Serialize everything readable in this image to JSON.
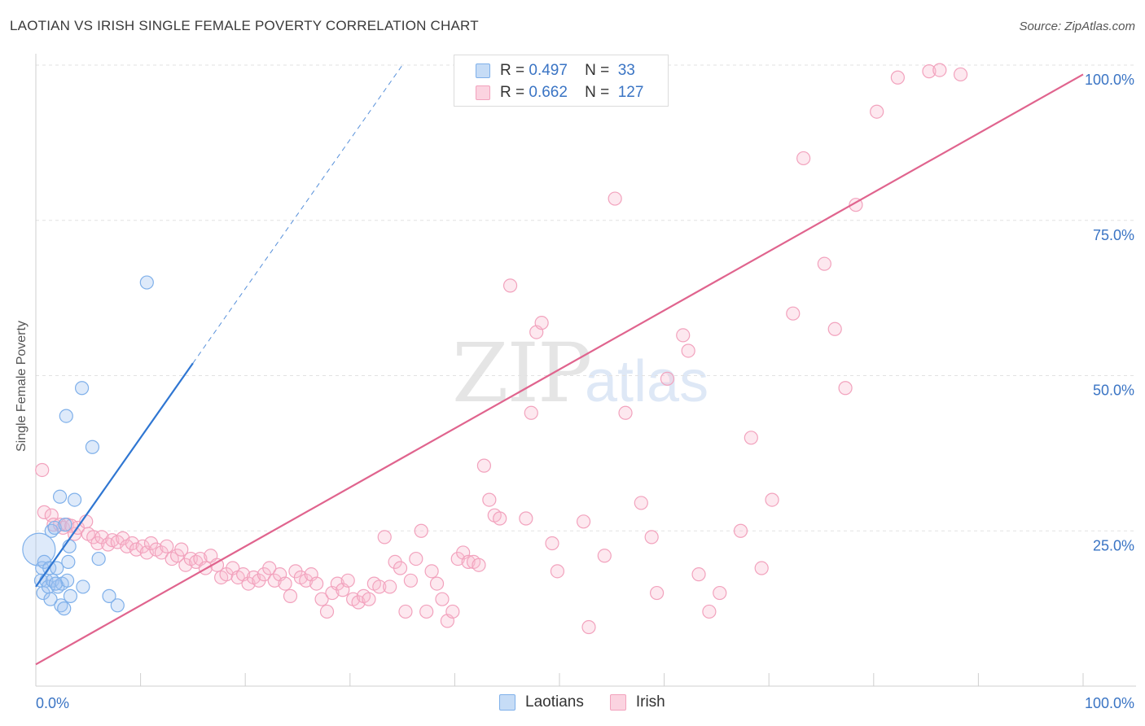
{
  "header": {
    "title": "LAOTIAN VS IRISH SINGLE FEMALE POVERTY CORRELATION CHART",
    "source": "Source: ZipAtlas.com"
  },
  "legend": {
    "laotians": {
      "r_label": "R =",
      "r_value": "0.497",
      "n_label": "N =",
      "n_value": "33"
    },
    "irish": {
      "r_label": "R =",
      "r_value": "0.662",
      "n_label": "N =",
      "n_value": "127"
    }
  },
  "bottom_legend": {
    "laotians": "Laotians",
    "irish": "Irish"
  },
  "watermark": {
    "zip": "ZIP",
    "atlas": "atlas"
  },
  "colors": {
    "laotians": "#7fb0ea",
    "laotians_line": "#2f76d2",
    "irish": "#f2a2bd",
    "irish_line": "#e0648e",
    "tick_label": "#3a74c4"
  },
  "chart_data": {
    "type": "scatter",
    "title": "LAOTIAN VS IRISH SINGLE FEMALE POVERTY CORRELATION CHART",
    "xlabel": "",
    "ylabel": "Single Female Poverty",
    "xlim": [
      0,
      100
    ],
    "ylim": [
      0,
      100
    ],
    "x_tick_labels": [
      "0.0%",
      "100.0%"
    ],
    "y_tick_labels": [
      "25.0%",
      "50.0%",
      "75.0%",
      "100.0%"
    ],
    "y_ticks": [
      25,
      50,
      75,
      100
    ],
    "grid": true,
    "legend_position": "top-center",
    "series": [
      {
        "name": "Laotians",
        "points": [
          [
            0.3,
            22.0
          ],
          [
            0.5,
            17.0
          ],
          [
            0.6,
            19.0
          ],
          [
            0.7,
            15.0
          ],
          [
            0.8,
            20.0
          ],
          [
            1.0,
            17.0
          ],
          [
            1.2,
            16.0
          ],
          [
            1.3,
            19.0
          ],
          [
            1.4,
            14.0
          ],
          [
            1.5,
            25.0
          ],
          [
            1.6,
            17.0
          ],
          [
            1.8,
            25.5
          ],
          [
            2.0,
            19.0
          ],
          [
            2.1,
            16.0
          ],
          [
            2.3,
            30.5
          ],
          [
            2.4,
            13.0
          ],
          [
            2.5,
            16.5
          ],
          [
            2.7,
            12.5
          ],
          [
            2.8,
            26.0
          ],
          [
            2.9,
            43.5
          ],
          [
            3.0,
            17.0
          ],
          [
            3.1,
            20.0
          ],
          [
            3.2,
            22.5
          ],
          [
            3.3,
            14.5
          ],
          [
            3.7,
            30.0
          ],
          [
            4.4,
            48.0
          ],
          [
            4.5,
            16.0
          ],
          [
            5.4,
            38.5
          ],
          [
            6.0,
            20.5
          ],
          [
            7.0,
            14.5
          ],
          [
            7.8,
            13.0
          ],
          [
            10.6,
            65.0
          ],
          [
            1.9,
            16.5
          ]
        ]
      },
      {
        "name": "Irish",
        "points": [
          [
            0.6,
            34.8
          ],
          [
            0.8,
            28.0
          ],
          [
            1.5,
            27.5
          ],
          [
            1.7,
            26.0
          ],
          [
            2.3,
            26.0
          ],
          [
            2.6,
            25.5
          ],
          [
            3.0,
            26.0
          ],
          [
            3.4,
            25.8
          ],
          [
            3.7,
            24.5
          ],
          [
            4.0,
            25.5
          ],
          [
            4.8,
            26.5
          ],
          [
            5.0,
            24.5
          ],
          [
            5.5,
            24.0
          ],
          [
            5.9,
            23.0
          ],
          [
            6.3,
            24.0
          ],
          [
            6.9,
            22.8
          ],
          [
            7.3,
            23.5
          ],
          [
            7.8,
            23.2
          ],
          [
            8.3,
            23.8
          ],
          [
            8.7,
            22.5
          ],
          [
            9.2,
            23.0
          ],
          [
            9.6,
            22.0
          ],
          [
            10.2,
            22.5
          ],
          [
            10.6,
            21.5
          ],
          [
            11.0,
            23.0
          ],
          [
            11.5,
            22.0
          ],
          [
            12.0,
            21.5
          ],
          [
            12.5,
            22.5
          ],
          [
            13.0,
            20.5
          ],
          [
            13.5,
            21.0
          ],
          [
            13.9,
            22.0
          ],
          [
            14.3,
            19.5
          ],
          [
            14.8,
            20.5
          ],
          [
            15.3,
            20.0
          ],
          [
            15.7,
            20.5
          ],
          [
            16.2,
            19.0
          ],
          [
            16.7,
            21.0
          ],
          [
            17.3,
            19.5
          ],
          [
            17.7,
            17.5
          ],
          [
            18.2,
            18.0
          ],
          [
            18.8,
            19.0
          ],
          [
            19.3,
            17.5
          ],
          [
            19.8,
            18.0
          ],
          [
            20.3,
            16.5
          ],
          [
            20.8,
            17.5
          ],
          [
            21.3,
            17.0
          ],
          [
            21.8,
            18.0
          ],
          [
            22.3,
            19.0
          ],
          [
            22.8,
            17.0
          ],
          [
            23.3,
            18.0
          ],
          [
            23.8,
            16.5
          ],
          [
            24.3,
            14.5
          ],
          [
            24.8,
            18.5
          ],
          [
            25.3,
            17.5
          ],
          [
            25.8,
            17.0
          ],
          [
            26.3,
            18.0
          ],
          [
            26.8,
            16.5
          ],
          [
            27.3,
            14.0
          ],
          [
            27.8,
            12.0
          ],
          [
            28.3,
            15.0
          ],
          [
            28.8,
            16.5
          ],
          [
            29.3,
            15.5
          ],
          [
            29.8,
            17.0
          ],
          [
            30.3,
            14.0
          ],
          [
            30.8,
            13.5
          ],
          [
            31.3,
            14.5
          ],
          [
            31.8,
            14.0
          ],
          [
            32.3,
            16.5
          ],
          [
            32.8,
            16.0
          ],
          [
            33.3,
            24.0
          ],
          [
            33.8,
            16.0
          ],
          [
            34.3,
            20.0
          ],
          [
            34.8,
            19.0
          ],
          [
            35.3,
            12.0
          ],
          [
            35.8,
            17.0
          ],
          [
            36.3,
            20.5
          ],
          [
            36.8,
            25.0
          ],
          [
            37.3,
            12.0
          ],
          [
            37.8,
            18.5
          ],
          [
            38.3,
            16.5
          ],
          [
            38.8,
            14.0
          ],
          [
            39.3,
            10.5
          ],
          [
            39.8,
            12.0
          ],
          [
            40.3,
            20.5
          ],
          [
            40.8,
            21.5
          ],
          [
            41.3,
            20.0
          ],
          [
            41.8,
            20.0
          ],
          [
            42.3,
            19.5
          ],
          [
            42.8,
            35.5
          ],
          [
            43.3,
            30.0
          ],
          [
            43.8,
            27.5
          ],
          [
            44.3,
            27.0
          ],
          [
            45.3,
            64.5
          ],
          [
            46.8,
            27.0
          ],
          [
            47.3,
            44.0
          ],
          [
            47.8,
            57.0
          ],
          [
            48.3,
            58.5
          ],
          [
            49.3,
            23.0
          ],
          [
            49.8,
            18.5
          ],
          [
            52.3,
            26.5
          ],
          [
            52.8,
            9.5
          ],
          [
            54.3,
            21.0
          ],
          [
            55.3,
            78.5
          ],
          [
            56.3,
            44.0
          ],
          [
            57.8,
            29.5
          ],
          [
            58.8,
            24.0
          ],
          [
            59.3,
            15.0
          ],
          [
            60.3,
            49.5
          ],
          [
            61.8,
            56.5
          ],
          [
            62.3,
            54.0
          ],
          [
            63.3,
            18.0
          ],
          [
            64.3,
            12.0
          ],
          [
            65.3,
            15.0
          ],
          [
            67.3,
            25.0
          ],
          [
            68.3,
            40.0
          ],
          [
            69.3,
            19.0
          ],
          [
            70.3,
            30.0
          ],
          [
            72.3,
            60.0
          ],
          [
            73.3,
            85.0
          ],
          [
            75.3,
            68.0
          ],
          [
            76.3,
            57.5
          ],
          [
            77.3,
            48.0
          ],
          [
            78.3,
            77.5
          ],
          [
            80.3,
            92.5
          ],
          [
            82.3,
            98.0
          ],
          [
            85.3,
            99.0
          ],
          [
            86.3,
            99.2
          ],
          [
            88.3,
            98.5
          ]
        ]
      }
    ],
    "trend_lines": [
      {
        "name": "Laotians",
        "x": [
          0,
          15
        ],
        "y": [
          16,
          52
        ],
        "extended_to": [
          35,
          100
        ]
      },
      {
        "name": "Irish",
        "x": [
          0,
          100
        ],
        "y": [
          3.5,
          98.5
        ]
      }
    ]
  }
}
